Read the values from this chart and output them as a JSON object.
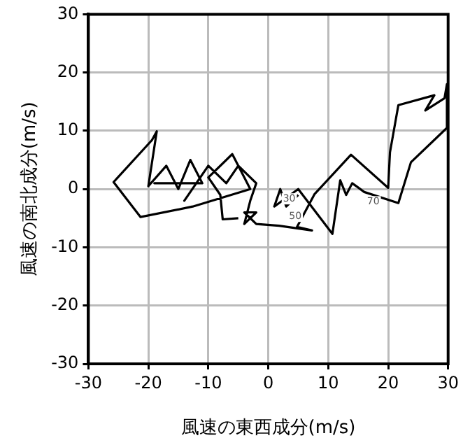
{
  "chart_data": {
    "type": "line",
    "xlabel": "風速の東西成分(m/s)",
    "ylabel": "風速の南北成分(m/s)",
    "xlim": [
      -30,
      30
    ],
    "ylim": [
      -30,
      30
    ],
    "xticks": [
      -30,
      -20,
      -10,
      0,
      10,
      20,
      30
    ],
    "yticks": [
      -30,
      -20,
      -10,
      0,
      10,
      20,
      30
    ],
    "grid": true,
    "legend": false,
    "marker": "none",
    "series": [
      {
        "color": "#000000",
        "x": [
          -5,
          -7.6,
          -8,
          -10,
          -6,
          -3,
          -12.6,
          -21.3,
          -25.8,
          -19.4,
          -18.6,
          -20,
          -17,
          -15,
          -13,
          -11,
          -19,
          -12,
          -14,
          -10,
          -7,
          -5,
          -2,
          -3,
          -4,
          -2,
          -4,
          -2,
          1.8,
          7.3,
          4.8,
          7.7,
          13.8,
          20,
          20.3,
          21.7,
          27.7,
          26.2,
          29.4,
          29.8,
          29.8,
          23.8,
          21.7,
          16,
          14,
          13,
          12,
          10.7,
          5,
          1,
          2,
          3,
          5
        ],
        "values": [
          -5,
          -5.2,
          -1,
          2,
          6,
          0,
          -3,
          -4.8,
          1.2,
          8.4,
          9.9,
          0.5,
          4,
          0,
          5,
          1,
          1,
          1,
          -2,
          4,
          1,
          4,
          1,
          -2,
          -6,
          -4,
          -4,
          -6,
          -6.3,
          -7.1,
          -6.5,
          -0.9,
          5.9,
          0.2,
          6.3,
          14.4,
          16.1,
          13.5,
          15.6,
          18,
          10.5,
          4.6,
          -2.4,
          -0.5,
          1,
          -1,
          1.5,
          -7.7,
          0,
          -3,
          0,
          -3,
          -1
        ]
      }
    ],
    "annotations": [
      {
        "text": "30",
        "x": 2,
        "y": 0
      },
      {
        "text": "50",
        "x": 3,
        "y": -3
      },
      {
        "text": "70",
        "x": 16,
        "y": -0.5
      }
    ]
  }
}
